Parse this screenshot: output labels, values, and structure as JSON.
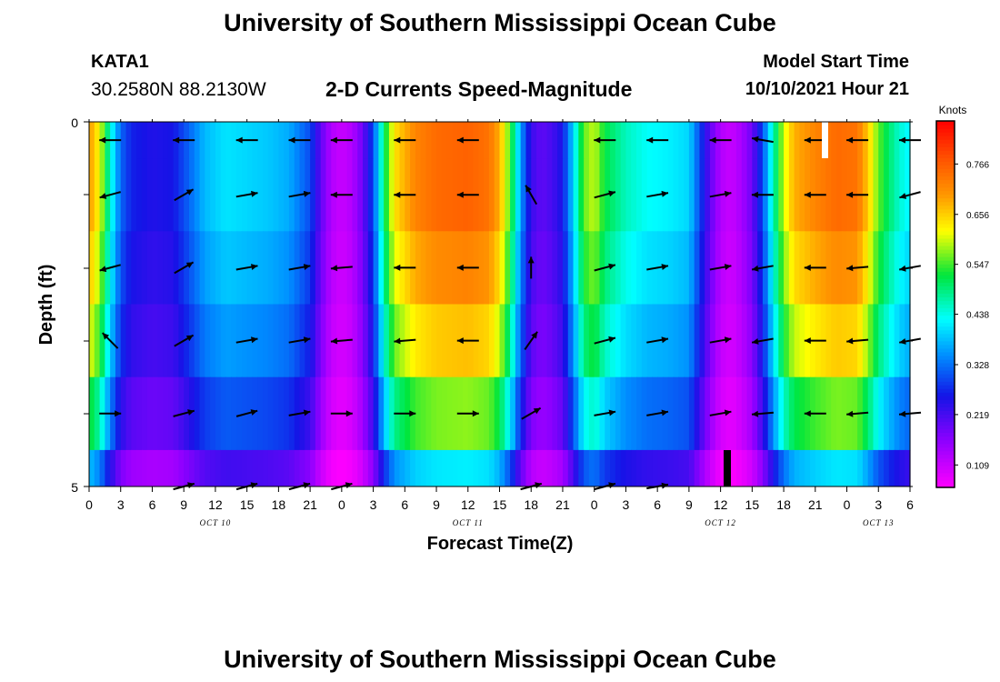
{
  "header": {
    "title": "University of Southern Mississippi Ocean Cube",
    "station": "KATA1",
    "coords": "30.2580N  88.2130W",
    "subtitle": "2-D Currents Speed-Magnitude",
    "model_label": "Model Start Time",
    "model_time": "10/10/2021 Hour 21"
  },
  "footer": {
    "title": "University of Southern Mississippi Ocean Cube"
  },
  "chart_data": {
    "type": "heatmap",
    "title": "2-D Currents Speed-Magnitude",
    "xlabel": "Forecast Time(Z)",
    "ylabel": "Depth (ft)",
    "x_range": [
      0,
      78
    ],
    "ylim": [
      0,
      5
    ],
    "y_tick_labels": [
      "0",
      "5"
    ],
    "x_tick_labels": [
      "0",
      "3",
      "6",
      "9",
      "12",
      "15",
      "18",
      "21",
      "0",
      "3",
      "6",
      "9",
      "12",
      "15",
      "18",
      "21",
      "0",
      "3",
      "6",
      "9",
      "12",
      "15",
      "18",
      "21",
      "0",
      "3",
      "6"
    ],
    "day_labels": [
      {
        "text": "OCT 10",
        "hour": 12
      },
      {
        "text": "OCT 11",
        "hour": 36
      },
      {
        "text": "OCT 12",
        "hour": 60
      },
      {
        "text": "OCT 13",
        "hour": 75
      }
    ],
    "colorbar": {
      "unit": "Knots",
      "tick_labels": [
        "0.766",
        "0.656",
        "0.547",
        "0.438",
        "0.328",
        "0.219",
        "0.109"
      ],
      "tick_values": [
        0.766,
        0.656,
        0.547,
        0.438,
        0.328,
        0.219,
        0.109
      ],
      "vmin": 0.06,
      "vmax": 0.86
    },
    "speed_profile_knots": [
      {
        "hour": 0,
        "v": 0.7
      },
      {
        "hour": 1,
        "v": 0.62
      },
      {
        "hour": 2,
        "v": 0.45
      },
      {
        "hour": 3,
        "v": 0.32
      },
      {
        "hour": 4,
        "v": 0.27
      },
      {
        "hour": 6,
        "v": 0.25
      },
      {
        "hour": 8,
        "v": 0.26
      },
      {
        "hour": 9,
        "v": 0.3
      },
      {
        "hour": 10,
        "v": 0.34
      },
      {
        "hour": 11,
        "v": 0.38
      },
      {
        "hour": 13,
        "v": 0.41
      },
      {
        "hour": 15,
        "v": 0.4
      },
      {
        "hour": 17,
        "v": 0.39
      },
      {
        "hour": 19,
        "v": 0.37
      },
      {
        "hour": 21,
        "v": 0.3
      },
      {
        "hour": 22,
        "v": 0.2
      },
      {
        "hour": 23,
        "v": 0.13
      },
      {
        "hour": 24,
        "v": 0.11
      },
      {
        "hour": 25,
        "v": 0.13
      },
      {
        "hour": 26,
        "v": 0.19
      },
      {
        "hour": 27,
        "v": 0.3
      },
      {
        "hour": 28,
        "v": 0.5
      },
      {
        "hour": 29,
        "v": 0.64
      },
      {
        "hour": 31,
        "v": 0.72
      },
      {
        "hour": 33,
        "v": 0.75
      },
      {
        "hour": 36,
        "v": 0.76
      },
      {
        "hour": 38,
        "v": 0.74
      },
      {
        "hour": 39,
        "v": 0.68
      },
      {
        "hour": 40,
        "v": 0.55
      },
      {
        "hour": 41,
        "v": 0.36
      },
      {
        "hour": 42,
        "v": 0.23
      },
      {
        "hour": 43,
        "v": 0.2
      },
      {
        "hour": 44,
        "v": 0.22
      },
      {
        "hour": 45,
        "v": 0.26
      },
      {
        "hour": 46,
        "v": 0.4
      },
      {
        "hour": 47,
        "v": 0.56
      },
      {
        "hour": 48,
        "v": 0.6
      },
      {
        "hour": 49,
        "v": 0.52
      },
      {
        "hour": 51,
        "v": 0.46
      },
      {
        "hour": 53,
        "v": 0.43
      },
      {
        "hour": 55,
        "v": 0.42
      },
      {
        "hour": 57,
        "v": 0.4
      },
      {
        "hour": 58,
        "v": 0.3
      },
      {
        "hour": 59,
        "v": 0.2
      },
      {
        "hour": 60,
        "v": 0.13
      },
      {
        "hour": 61,
        "v": 0.11
      },
      {
        "hour": 62,
        "v": 0.14
      },
      {
        "hour": 63,
        "v": 0.19
      },
      {
        "hour": 64,
        "v": 0.3
      },
      {
        "hour": 65,
        "v": 0.46
      },
      {
        "hour": 66,
        "v": 0.6
      },
      {
        "hour": 67,
        "v": 0.68
      },
      {
        "hour": 69,
        "v": 0.72
      },
      {
        "hour": 71,
        "v": 0.75
      },
      {
        "hour": 73,
        "v": 0.74
      },
      {
        "hour": 74,
        "v": 0.66
      },
      {
        "hour": 75,
        "v": 0.56
      },
      {
        "hour": 76,
        "v": 0.5
      },
      {
        "hour": 77,
        "v": 0.45
      },
      {
        "hour": 78,
        "v": 0.42
      }
    ],
    "layer_factors": [
      1.0,
      1.0,
      0.95,
      0.88,
      0.76,
      0.55
    ],
    "vector_hours": [
      2,
      9,
      15,
      20,
      24,
      30,
      36,
      42,
      49,
      54,
      60,
      64,
      69,
      73,
      78
    ],
    "vector_rows": [
      [
        180,
        180,
        180,
        180,
        180,
        180,
        180,
        null,
        180,
        180,
        180,
        170,
        180,
        180,
        180
      ],
      [
        195,
        30,
        10,
        10,
        180,
        180,
        180,
        120,
        15,
        10,
        10,
        180,
        180,
        180,
        195
      ],
      [
        195,
        30,
        10,
        10,
        185,
        180,
        180,
        90,
        15,
        10,
        10,
        190,
        180,
        185,
        190
      ],
      [
        135,
        30,
        10,
        10,
        185,
        185,
        180,
        55,
        15,
        10,
        10,
        190,
        180,
        185,
        190
      ],
      [
        0,
        15,
        15,
        10,
        0,
        0,
        0,
        30,
        10,
        10,
        10,
        185,
        180,
        185,
        185
      ],
      [
        null,
        15,
        15,
        15,
        15,
        null,
        null,
        15,
        15,
        10,
        null,
        null,
        null,
        null,
        null
      ]
    ]
  }
}
